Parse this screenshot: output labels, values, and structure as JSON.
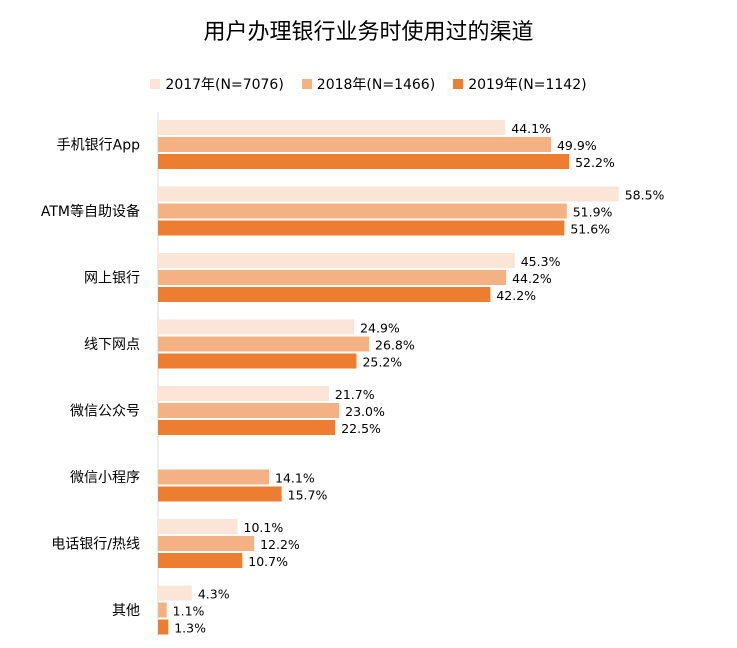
{
  "chart_data": {
    "type": "bar",
    "orientation": "horizontal",
    "title": "用户办理银行业务时使用过的渠道",
    "categories": [
      "手机银行App",
      "ATM等自助设备",
      "网上银行",
      "线下网点",
      "微信公众号",
      "微信小程序",
      "电话银行/热线",
      "其他"
    ],
    "series": [
      {
        "name": "2017年(N=7076)",
        "color": "#FBE5D6",
        "values": [
          44.1,
          58.5,
          45.3,
          24.9,
          21.7,
          null,
          10.1,
          4.3
        ]
      },
      {
        "name": "2018年(N=1466)",
        "color": "#F4B183",
        "values": [
          49.9,
          51.9,
          44.2,
          26.8,
          23.0,
          14.1,
          12.2,
          1.1
        ]
      },
      {
        "name": "2019年(N=1142)",
        "color": "#ED7D31",
        "values": [
          52.2,
          51.6,
          42.2,
          25.2,
          22.5,
          15.7,
          10.7,
          1.3
        ]
      }
    ],
    "value_format": "percent_1dp",
    "xlim": [
      0,
      60
    ],
    "grid": false,
    "legend_position": "top"
  }
}
